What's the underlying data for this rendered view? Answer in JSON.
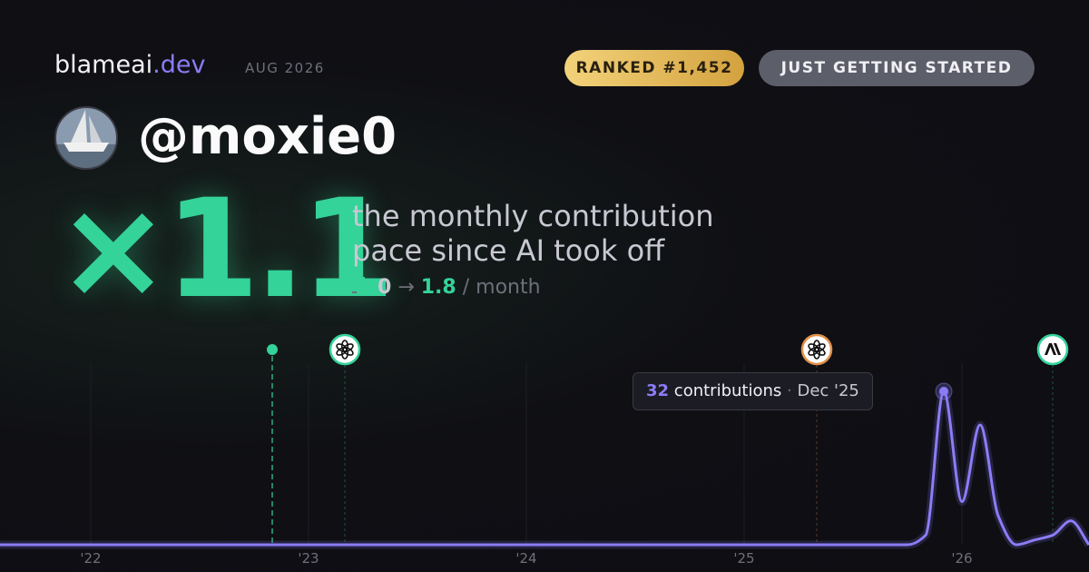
{
  "header": {
    "brand": "blameai",
    "brand_tld": ".dev",
    "period": "AUG 2026",
    "rank_badge": "RANKED #1,452",
    "level_badge": "JUST GETTING STARTED"
  },
  "profile": {
    "handle": "@moxie0"
  },
  "hero": {
    "multiplier": "×1.1",
    "description_line1": "the monthly contribution",
    "description_line2": "pace since AI took off",
    "rate_before": "0",
    "arrow": "→",
    "rate_after": "1.8",
    "rate_unit": "/ month"
  },
  "chart_data": {
    "type": "line",
    "x": [
      "Aug '21",
      "Sep '25",
      "Oct '25",
      "Nov '25",
      "Dec '25",
      "Jan '26",
      "Feb '26",
      "Mar '26",
      "Apr '26",
      "May '26",
      "Jun '26",
      "Jul '26",
      "Aug '26"
    ],
    "series": [
      {
        "name": "contributions",
        "color": "#8b7cf6",
        "values": [
          0,
          0,
          0,
          2,
          32,
          9,
          25,
          6,
          0,
          1,
          2,
          5,
          0
        ]
      }
    ],
    "xlim": [
      "Aug '21",
      "Aug '26"
    ],
    "xticks": [
      {
        "value": "Jan '22",
        "label": "'22"
      },
      {
        "value": "Jan '23",
        "label": "'23"
      },
      {
        "value": "Jan '24",
        "label": "'24"
      },
      {
        "value": "Jan '25",
        "label": "'25"
      },
      {
        "value": "Jan '26",
        "label": "'26"
      }
    ],
    "ylim": [
      0,
      32
    ],
    "highlight": 4,
    "events": [
      {
        "x": "Nov '22",
        "kind": "dot",
        "color": "#34d399"
      },
      {
        "x": "Mar '23",
        "kind": "openai",
        "color": "#34d399"
      },
      {
        "x": "May '25",
        "kind": "openai",
        "color": "#e0904a"
      },
      {
        "x": "Jun '26",
        "kind": "anthropic",
        "color": "#34d399"
      }
    ]
  }
}
